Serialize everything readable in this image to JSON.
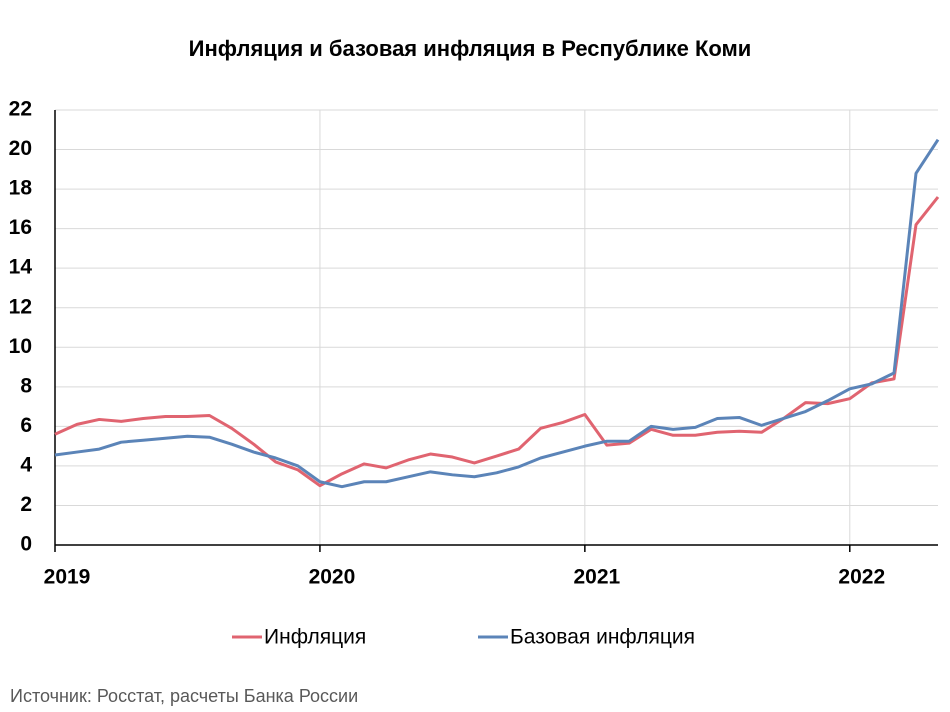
{
  "chart_data": {
    "type": "line",
    "title": "Инфляция и базовая инфляция в Республике Коми",
    "source": "Источник: Росстат, расчеты Банка России",
    "x": [
      2019,
      2019.083,
      2019.167,
      2019.25,
      2019.333,
      2019.417,
      2019.5,
      2019.583,
      2019.667,
      2019.75,
      2019.833,
      2019.917,
      2020,
      2020.083,
      2020.167,
      2020.25,
      2020.333,
      2020.417,
      2020.5,
      2020.583,
      2020.667,
      2020.75,
      2020.833,
      2020.917,
      2021,
      2021.083,
      2021.167,
      2021.25,
      2021.333,
      2021.417,
      2021.5,
      2021.583,
      2021.667,
      2021.75,
      2021.833,
      2021.917,
      2022,
      2022.083,
      2022.167,
      2022.25,
      2022.333
    ],
    "series": [
      {
        "name": "Инфляция",
        "color": "#e06470",
        "values": [
          5.6,
          6.1,
          6.35,
          6.25,
          6.4,
          6.5,
          6.5,
          6.55,
          5.9,
          5.1,
          4.2,
          3.8,
          3.0,
          3.6,
          4.1,
          3.9,
          4.3,
          4.6,
          4.45,
          4.15,
          4.5,
          4.85,
          5.9,
          6.2,
          6.6,
          5.05,
          5.15,
          5.85,
          5.55,
          5.55,
          5.7,
          5.75,
          5.7,
          6.4,
          7.2,
          7.15,
          7.4,
          8.2,
          8.4,
          16.2,
          17.6
        ]
      },
      {
        "name": "Базовая инфляция",
        "color": "#5b84b8",
        "values": [
          4.55,
          4.7,
          4.85,
          5.2,
          5.3,
          5.4,
          5.5,
          5.45,
          5.1,
          4.7,
          4.4,
          4.0,
          3.2,
          2.95,
          3.2,
          3.2,
          3.45,
          3.7,
          3.55,
          3.45,
          3.65,
          3.95,
          4.4,
          4.7,
          5.0,
          5.25,
          5.25,
          6.0,
          5.85,
          5.95,
          6.4,
          6.45,
          6.05,
          6.4,
          6.75,
          7.3,
          7.9,
          8.15,
          8.7,
          18.8,
          20.5
        ]
      }
    ],
    "xlim": [
      2019,
      2022.333
    ],
    "xticks": [
      2019,
      2020,
      2021,
      2022
    ],
    "ylim": [
      0,
      22
    ],
    "yticks": [
      0,
      2,
      4,
      6,
      8,
      10,
      12,
      14,
      16,
      18,
      20,
      22
    ],
    "grid": true,
    "legend": "bottom"
  }
}
